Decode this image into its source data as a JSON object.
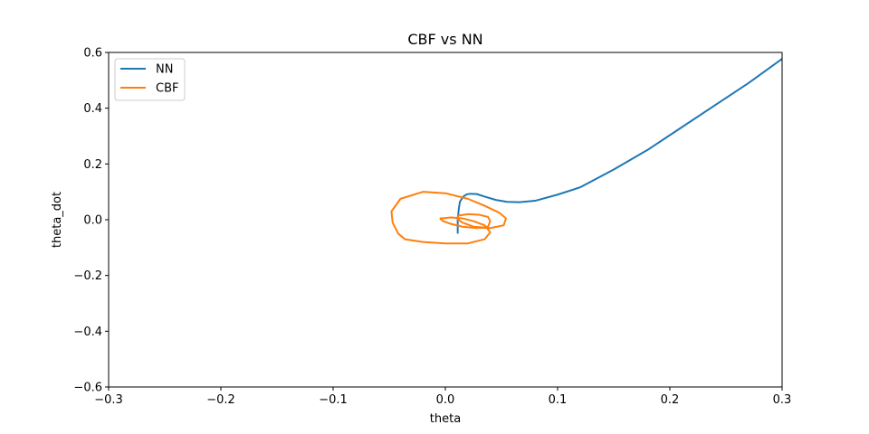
{
  "chart_data": {
    "type": "line",
    "title": "CBF vs NN",
    "xlabel": "theta",
    "ylabel": "theta_dot",
    "xlim": [
      -0.3,
      0.3
    ],
    "ylim": [
      -0.6,
      0.6
    ],
    "xticks": [
      -0.3,
      -0.2,
      -0.1,
      0.0,
      0.1,
      0.2,
      0.3
    ],
    "yticks": [
      -0.6,
      -0.4,
      -0.2,
      0.0,
      0.2,
      0.4,
      0.6
    ],
    "xtick_labels": [
      "−0.3",
      "−0.2",
      "−0.1",
      "0.0",
      "0.1",
      "0.2",
      "0.3"
    ],
    "ytick_labels": [
      "−0.6",
      "−0.4",
      "−0.2",
      "0.0",
      "0.2",
      "0.4",
      "0.6"
    ],
    "grid": false,
    "legend": "upper-left",
    "series": [
      {
        "name": "NN",
        "color": "#1f77b4",
        "x": [
          0.3,
          0.27,
          0.24,
          0.21,
          0.18,
          0.15,
          0.12,
          0.1,
          0.08,
          0.066,
          0.055,
          0.045,
          0.035,
          0.028,
          0.022,
          0.019,
          0.016,
          0.013,
          0.012,
          0.011,
          0.011
        ],
        "y": [
          0.577,
          0.49,
          0.41,
          0.33,
          0.25,
          0.18,
          0.116,
          0.09,
          0.068,
          0.063,
          0.064,
          0.071,
          0.083,
          0.092,
          0.093,
          0.091,
          0.083,
          0.065,
          0.04,
          0.0,
          -0.05
        ]
      },
      {
        "name": "CBF",
        "color": "#ff7f0e",
        "x": [
          -0.005,
          -0.002,
          0.005,
          0.015,
          0.028,
          0.038,
          0.04,
          0.038,
          0.03,
          0.02,
          0.012,
          0.01,
          0.015,
          0.025,
          0.04,
          0.052,
          0.054,
          0.048,
          0.035,
          0.02,
          0.0,
          -0.02,
          -0.04,
          -0.048,
          -0.047,
          -0.042,
          -0.036,
          -0.02,
          0.0,
          0.02,
          0.035,
          0.04,
          0.035,
          0.025,
          0.015,
          0.005,
          -0.003,
          -0.005
        ],
        "y": [
          0.005,
          -0.005,
          -0.015,
          -0.025,
          -0.03,
          -0.025,
          -0.005,
          0.01,
          0.018,
          0.02,
          0.015,
          0.005,
          -0.01,
          -0.025,
          -0.03,
          -0.02,
          0.005,
          0.025,
          0.05,
          0.075,
          0.095,
          0.1,
          0.075,
          0.03,
          -0.01,
          -0.05,
          -0.07,
          -0.08,
          -0.085,
          -0.085,
          -0.07,
          -0.045,
          -0.02,
          -0.005,
          0.005,
          0.008,
          0.005,
          0.005
        ]
      }
    ]
  }
}
